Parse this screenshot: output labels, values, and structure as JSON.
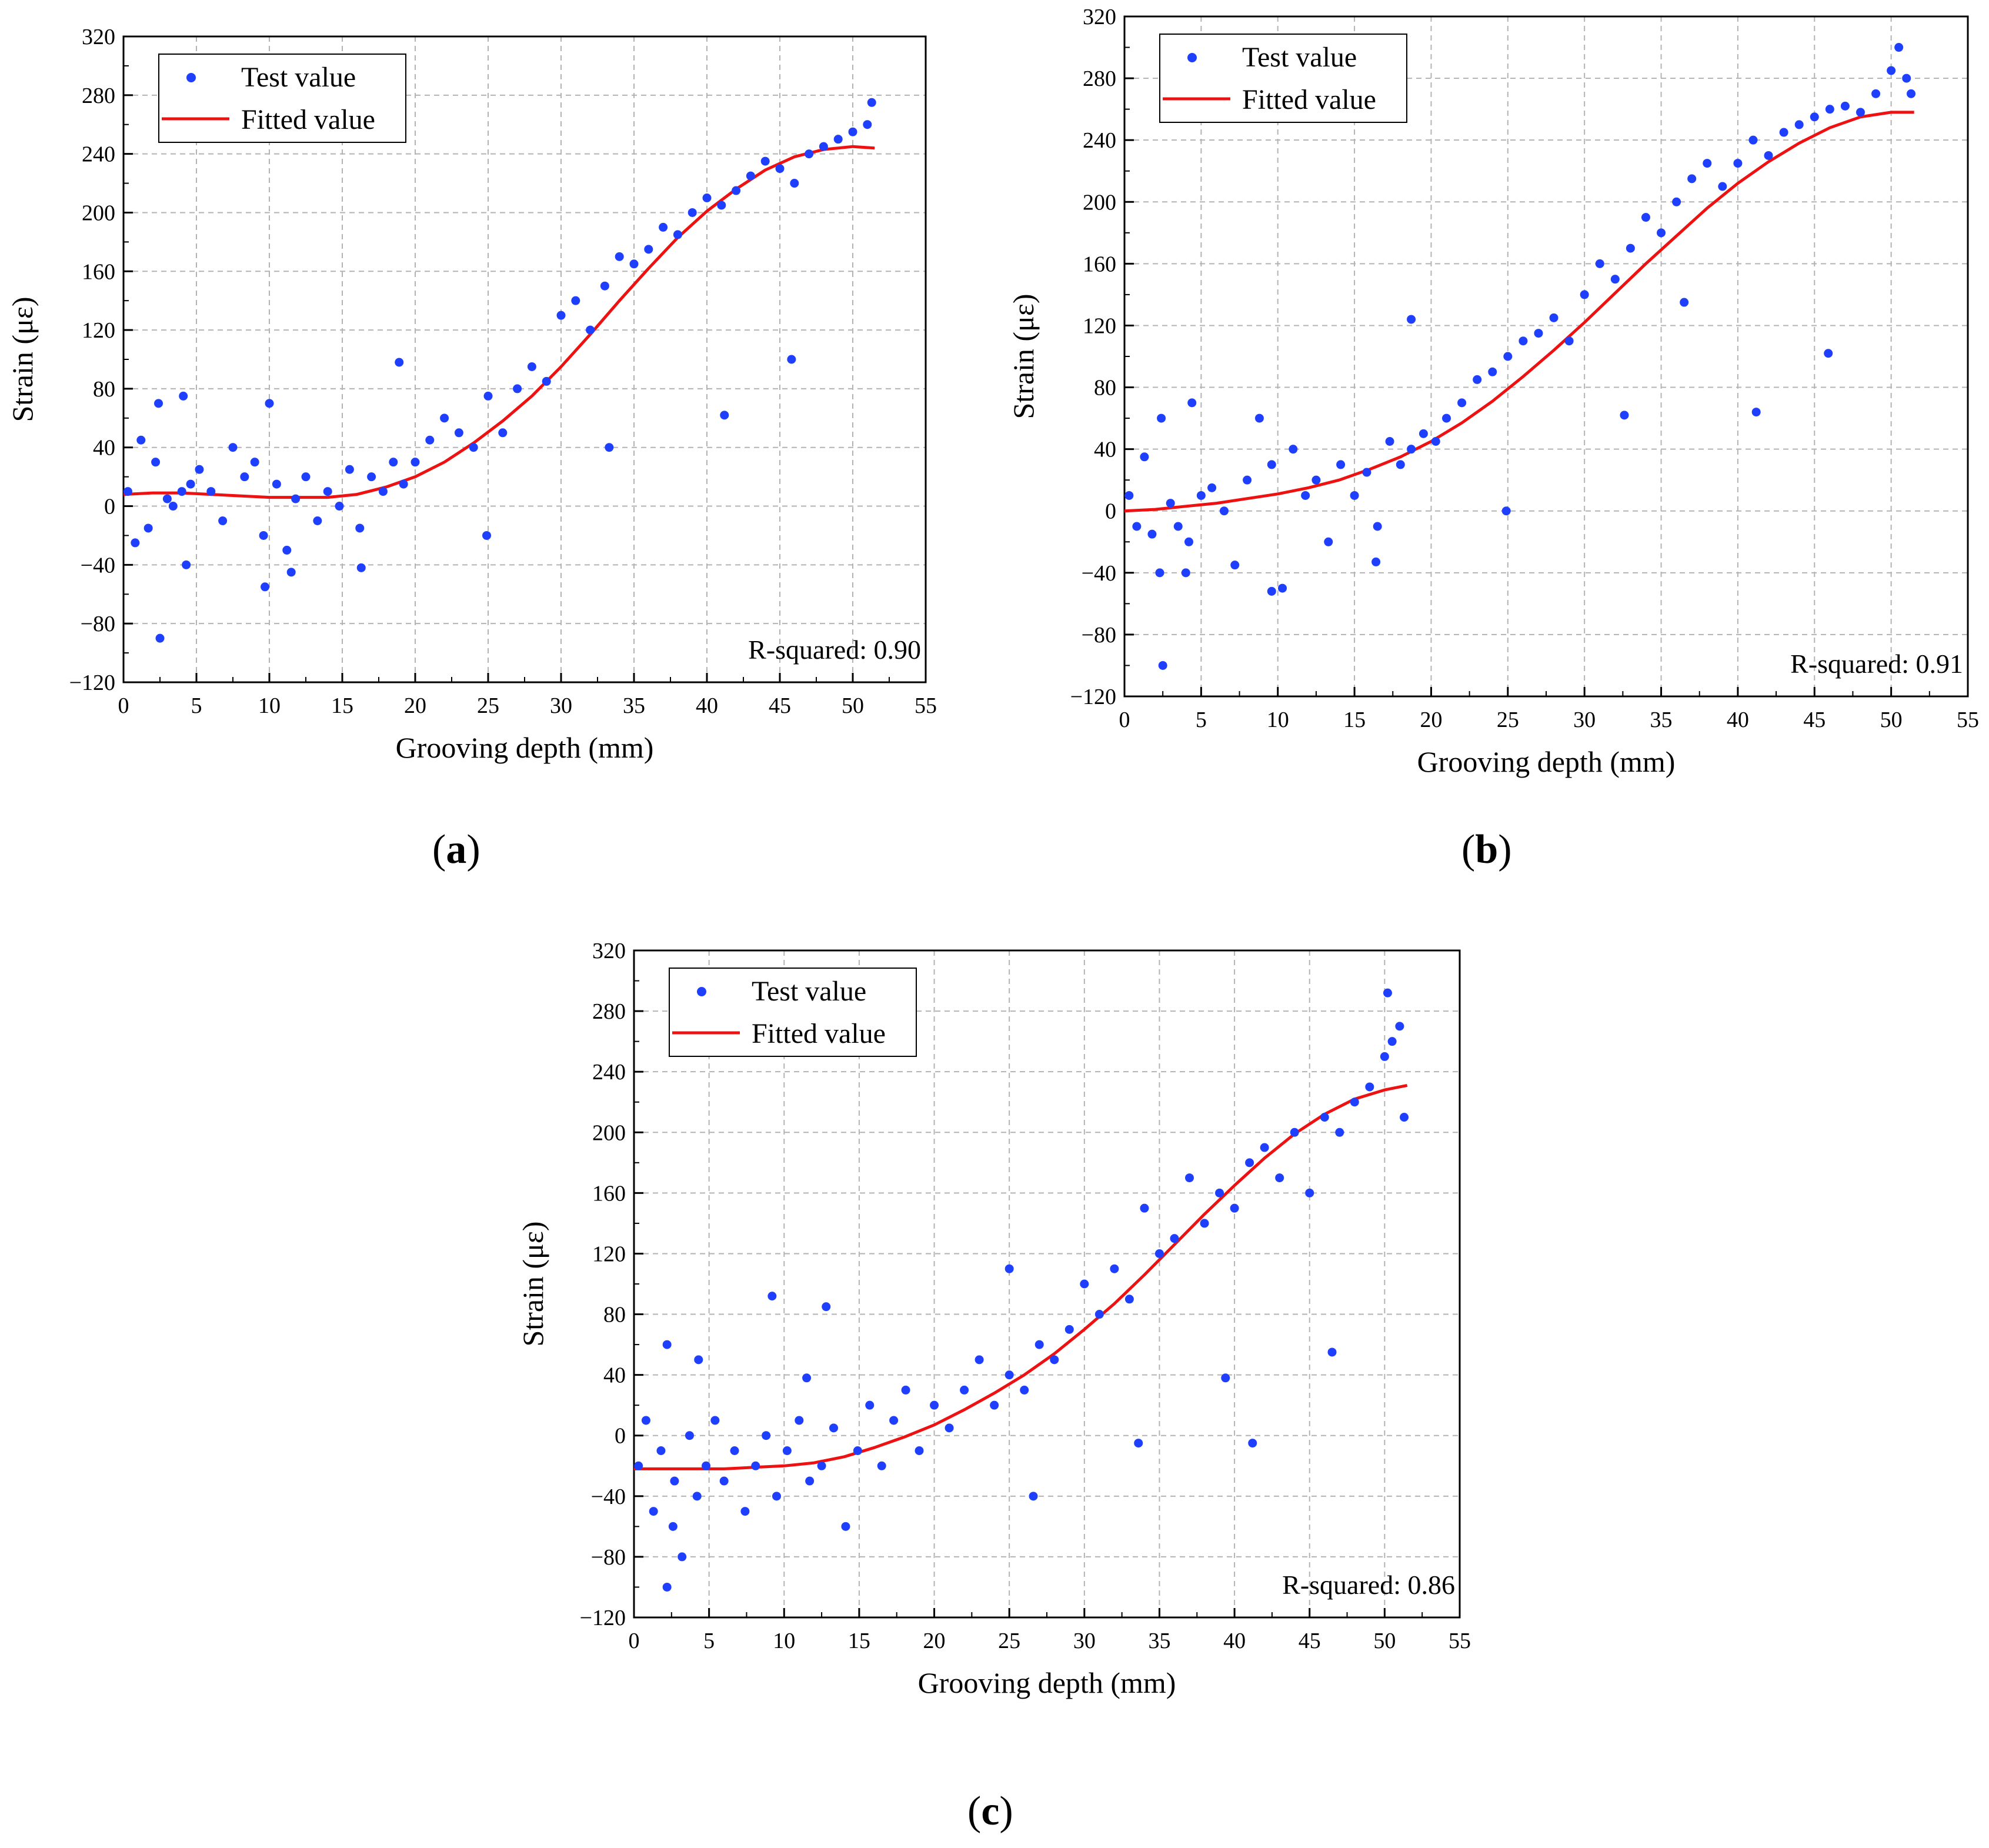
{
  "figure": {
    "marker_color": "#1f3fff",
    "fit_color": "#ee1111",
    "grid_color": "#b3b3b3",
    "panels": [
      {
        "id": "a",
        "label": "a",
        "r_squared_text": "R-squared: 0.90"
      },
      {
        "id": "b",
        "label": "b",
        "r_squared_text": "R-squared: 0.91"
      },
      {
        "id": "c",
        "label": "c",
        "r_squared_text": "R-squared: 0.86"
      }
    ]
  },
  "chart_data": [
    {
      "type": "scatter",
      "panel": "a",
      "xlabel": "Grooving depth (mm)",
      "ylabel": "Strain (με)",
      "xlim": [
        0,
        55
      ],
      "ylim": [
        -120,
        320
      ],
      "xticks": [
        0,
        5,
        10,
        15,
        20,
        25,
        30,
        35,
        40,
        45,
        50,
        55
      ],
      "yticks": [
        -120,
        -80,
        -40,
        0,
        40,
        80,
        120,
        160,
        200,
        240,
        280,
        320
      ],
      "grid": true,
      "legend": {
        "position": "top-left",
        "entries": [
          "Test value",
          "Fitted value"
        ]
      },
      "annotation": "R-squared: 0.90",
      "series": [
        {
          "name": "Test value",
          "kind": "scatter",
          "x": [
            0.3,
            0.8,
            1.2,
            1.7,
            2.2,
            2.5,
            3.0,
            3.4,
            4.0,
            4.3,
            4.6,
            5.2,
            6.0,
            6.8,
            7.5,
            8.3,
            9.0,
            9.6,
            10.0,
            10.5,
            11.2,
            11.8,
            12.5,
            13.3,
            14.0,
            14.8,
            15.5,
            16.2,
            17.0,
            17.8,
            18.5,
            19.2,
            20.0,
            21.0,
            22.0,
            23.0,
            24.0,
            25.0,
            26.0,
            27.0,
            28.0,
            29.0,
            30.0,
            31.0,
            32.0,
            33.0,
            34.0,
            35.0,
            36.0,
            37.0,
            38.0,
            39.0,
            40.0,
            41.0,
            42.0,
            43.0,
            44.0,
            45.0,
            46.0,
            47.0,
            48.0,
            49.0,
            50.0,
            51.0,
            51.3,
            2.4,
            4.1,
            9.7,
            11.5,
            16.3,
            24.9,
            41.2,
            45.8,
            18.9,
            33.3
          ],
          "y": [
            10,
            -25,
            45,
            -15,
            30,
            -90,
            5,
            0,
            10,
            -40,
            15,
            25,
            10,
            -10,
            40,
            20,
            30,
            -20,
            70,
            15,
            -30,
            5,
            20,
            -10,
            10,
            0,
            25,
            -15,
            20,
            10,
            30,
            15,
            30,
            45,
            60,
            50,
            40,
            75,
            50,
            80,
            95,
            85,
            130,
            140,
            120,
            150,
            170,
            165,
            175,
            190,
            185,
            200,
            210,
            205,
            215,
            225,
            235,
            230,
            220,
            240,
            245,
            250,
            255,
            260,
            275,
            70,
            75,
            -55,
            -45,
            -42,
            -20,
            62,
            100,
            98,
            40
          ]
        },
        {
          "name": "Fitted value",
          "kind": "line",
          "x": [
            0,
            2,
            4,
            6,
            8,
            10,
            12,
            14,
            16,
            18,
            20,
            22,
            24,
            26,
            28,
            30,
            32,
            34,
            36,
            38,
            40,
            42,
            44,
            46,
            48,
            50,
            51.5
          ],
          "y": [
            8,
            9,
            9,
            8,
            7,
            6,
            6,
            6,
            8,
            13,
            20,
            30,
            43,
            58,
            75,
            95,
            117,
            140,
            162,
            183,
            201,
            216,
            229,
            238,
            243,
            245,
            244
          ]
        }
      ]
    },
    {
      "type": "scatter",
      "panel": "b",
      "xlabel": "Grooving depth (mm)",
      "ylabel": "Strain (με)",
      "xlim": [
        0,
        55
      ],
      "ylim": [
        -120,
        320
      ],
      "xticks": [
        0,
        5,
        10,
        15,
        20,
        25,
        30,
        35,
        40,
        45,
        50,
        55
      ],
      "yticks": [
        -120,
        -80,
        -40,
        0,
        40,
        80,
        120,
        160,
        200,
        240,
        280,
        320
      ],
      "grid": true,
      "legend": {
        "position": "top-left",
        "entries": [
          "Test value",
          "Fitted value"
        ]
      },
      "annotation": "R-squared: 0.91",
      "series": [
        {
          "name": "Test value",
          "kind": "scatter",
          "x": [
            0.3,
            0.8,
            1.3,
            1.8,
            2.3,
            2.5,
            3.0,
            3.5,
            4.0,
            4.4,
            5.0,
            5.7,
            6.5,
            7.2,
            8.0,
            8.8,
            9.6,
            10.3,
            11.0,
            11.8,
            12.5,
            13.3,
            14.1,
            15.0,
            15.8,
            16.5,
            17.3,
            18.0,
            18.7,
            19.5,
            20.3,
            21.0,
            22.0,
            23.0,
            24.0,
            25.0,
            26.0,
            27.0,
            28.0,
            29.0,
            30.0,
            31.0,
            32.0,
            33.0,
            34.0,
            35.0,
            36.0,
            37.0,
            38.0,
            39.0,
            40.0,
            41.0,
            42.0,
            43.0,
            44.0,
            45.0,
            46.0,
            47.0,
            48.0,
            49.0,
            50.0,
            50.5,
            51.0,
            51.3,
            2.4,
            4.2,
            9.6,
            16.4,
            18.7,
            24.9,
            32.6,
            41.2,
            45.9,
            36.5
          ],
          "y": [
            10,
            -10,
            35,
            -15,
            -40,
            -100,
            5,
            -10,
            -40,
            70,
            10,
            15,
            0,
            -35,
            20,
            60,
            30,
            -50,
            40,
            10,
            20,
            -20,
            30,
            10,
            25,
            -10,
            45,
            30,
            40,
            50,
            45,
            60,
            70,
            85,
            90,
            100,
            110,
            115,
            125,
            110,
            140,
            160,
            150,
            170,
            190,
            180,
            200,
            215,
            225,
            210,
            225,
            240,
            230,
            245,
            250,
            255,
            260,
            262,
            258,
            270,
            285,
            300,
            280,
            270,
            60,
            -20,
            -52,
            -33,
            124,
            0,
            62,
            64,
            102,
            135
          ]
        },
        {
          "name": "Fitted value",
          "kind": "line",
          "x": [
            0,
            2,
            4,
            6,
            8,
            10,
            12,
            14,
            16,
            18,
            20,
            22,
            24,
            26,
            28,
            30,
            32,
            34,
            36,
            38,
            40,
            42,
            44,
            46,
            48,
            50,
            51.5
          ],
          "y": [
            0,
            1,
            3,
            5,
            8,
            11,
            15,
            20,
            27,
            35,
            45,
            57,
            71,
            87,
            104,
            122,
            141,
            160,
            178,
            196,
            212,
            226,
            238,
            248,
            255,
            258,
            258
          ]
        }
      ]
    },
    {
      "type": "scatter",
      "panel": "c",
      "xlabel": "Grooving depth (mm)",
      "ylabel": "Strain (με)",
      "xlim": [
        0,
        55
      ],
      "ylim": [
        -120,
        320
      ],
      "xticks": [
        0,
        5,
        10,
        15,
        20,
        25,
        30,
        35,
        40,
        45,
        50,
        55
      ],
      "yticks": [
        -120,
        -80,
        -40,
        0,
        40,
        80,
        120,
        160,
        200,
        240,
        280,
        320
      ],
      "grid": true,
      "legend": {
        "position": "top-left",
        "entries": [
          "Test value",
          "Fitted value"
        ]
      },
      "annotation": "R-squared: 0.86",
      "series": [
        {
          "name": "Test value",
          "kind": "scatter",
          "x": [
            0.3,
            0.8,
            1.3,
            1.8,
            2.2,
            2.7,
            3.2,
            3.7,
            4.2,
            4.8,
            5.4,
            6.0,
            6.7,
            7.4,
            8.1,
            8.8,
            9.5,
            10.2,
            11.0,
            11.7,
            12.5,
            13.3,
            14.1,
            14.9,
            15.7,
            16.5,
            17.3,
            18.1,
            19.0,
            20.0,
            21.0,
            22.0,
            23.0,
            24.0,
            25.0,
            26.0,
            27.0,
            28.0,
            29.0,
            30.0,
            31.0,
            32.0,
            33.0,
            34.0,
            35.0,
            36.0,
            37.0,
            38.0,
            39.0,
            40.0,
            41.0,
            42.0,
            43.0,
            44.0,
            45.0,
            46.0,
            47.0,
            48.0,
            49.0,
            50.0,
            50.5,
            51.0,
            51.3,
            2.2,
            4.3,
            9.2,
            12.8,
            2.6,
            11.5,
            25.0,
            26.6,
            33.6,
            41.2,
            46.5,
            39.4,
            50.2
          ],
          "y": [
            -20,
            10,
            -50,
            -10,
            -100,
            -30,
            -80,
            0,
            -40,
            -20,
            10,
            -30,
            -10,
            -50,
            -20,
            0,
            -40,
            -10,
            10,
            -30,
            -20,
            5,
            -60,
            -10,
            20,
            -20,
            10,
            30,
            -10,
            20,
            5,
            30,
            50,
            20,
            40,
            30,
            60,
            50,
            70,
            100,
            80,
            110,
            90,
            150,
            120,
            130,
            170,
            140,
            160,
            150,
            180,
            190,
            170,
            200,
            160,
            210,
            200,
            220,
            230,
            250,
            260,
            270,
            210,
            60,
            50,
            92,
            85,
            -60,
            38,
            110,
            -40,
            -5,
            -5,
            55,
            38,
            292
          ]
        },
        {
          "name": "Fitted value",
          "kind": "line",
          "x": [
            0,
            2,
            4,
            6,
            8,
            10,
            12,
            14,
            16,
            18,
            20,
            22,
            24,
            26,
            28,
            30,
            32,
            34,
            36,
            38,
            40,
            42,
            44,
            46,
            48,
            50,
            51.5
          ],
          "y": [
            -22,
            -22,
            -22,
            -22,
            -21,
            -20,
            -18,
            -14,
            -8,
            -1,
            7,
            17,
            28,
            40,
            54,
            70,
            87,
            106,
            126,
            146,
            165,
            183,
            199,
            212,
            222,
            228,
            231
          ]
        }
      ]
    }
  ]
}
